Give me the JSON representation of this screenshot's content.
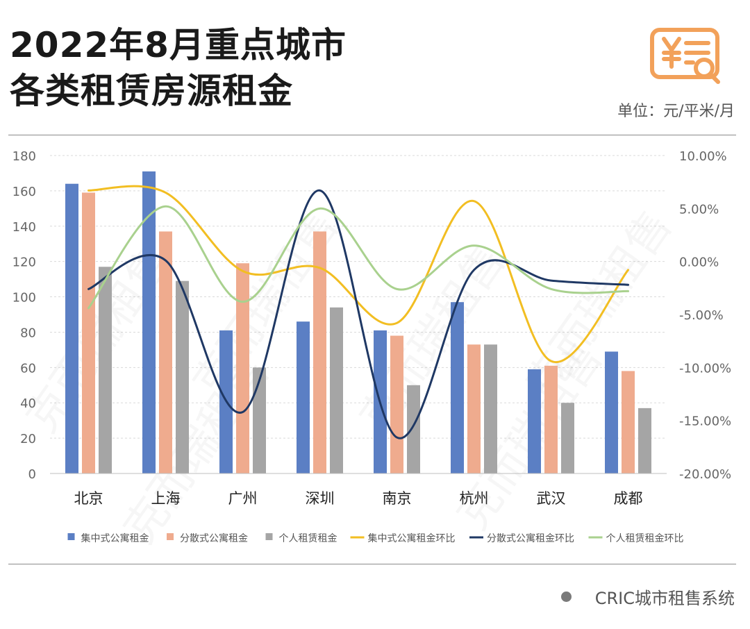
{
  "header": {
    "title_line1": "2022年8月重点城市",
    "title_line2": "各类租赁房源租金",
    "unit": "单位：元/平米/月",
    "logo_icon": "yuan-receipt-search-icon",
    "logo_color": "#F2A15A"
  },
  "footer": {
    "source": "CRIC城市租售系统",
    "dot_color": "#7A7A7A"
  },
  "chart_data": {
    "type": "bar",
    "title": "",
    "categories": [
      "北京",
      "上海",
      "广州",
      "深圳",
      "南京",
      "杭州",
      "武汉",
      "成都"
    ],
    "y_left": {
      "lim": [
        0,
        180
      ],
      "ticks": [
        0,
        20,
        40,
        60,
        80,
        100,
        120,
        140,
        160,
        180
      ],
      "tick_labels": [
        "0",
        "20",
        "40",
        "60",
        "80",
        "100",
        "120",
        "140",
        "160",
        "180"
      ]
    },
    "y_right": {
      "lim": [
        -20,
        10
      ],
      "ticks": [
        -20,
        -15,
        -10,
        -5,
        0,
        5,
        10
      ],
      "tick_labels": [
        "-20.00%",
        "-15.00%",
        "-10.00%",
        "-5.00%",
        "0.00%",
        "5.00%",
        "10.00%"
      ]
    },
    "grid": true,
    "legend_position": "bottom",
    "bar_series": [
      {
        "name": "集中式公寓租金",
        "color": "#5B7FC4",
        "values": [
          164,
          171,
          81,
          86,
          81,
          97,
          59,
          69
        ]
      },
      {
        "name": "分散式公寓租金",
        "color": "#EFAB8E",
        "values": [
          159,
          137,
          119,
          137,
          78,
          73,
          61,
          58
        ]
      },
      {
        "name": "个人租赁租金",
        "color": "#A5A5A5",
        "values": [
          117,
          109,
          60,
          94,
          50,
          73,
          40,
          37
        ]
      }
    ],
    "line_series": [
      {
        "name": "集中式公寓租金环比",
        "color": "#F2BE22",
        "values": [
          6.7,
          6.5,
          -0.9,
          -0.6,
          -5.8,
          5.7,
          -9.4,
          -0.8
        ]
      },
      {
        "name": "分散式公寓租金环比",
        "color": "#1F3864",
        "values": [
          -2.6,
          0.1,
          -14.2,
          6.7,
          -16.6,
          -0.8,
          -1.8,
          -2.2
        ]
      },
      {
        "name": "个人租赁租金环比",
        "color": "#A9D18E",
        "values": [
          -4.4,
          5.2,
          -3.8,
          5.0,
          -2.6,
          1.5,
          -2.6,
          -2.8
        ]
      }
    ],
    "watermark": "克而瑞租售"
  }
}
